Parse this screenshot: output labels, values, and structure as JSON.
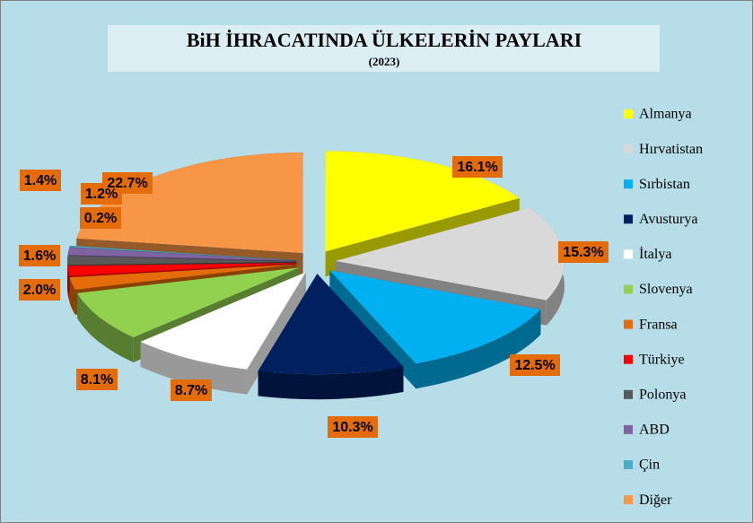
{
  "chart_data": {
    "type": "pie",
    "title": "BiH İHRACATINDA ÜLKELERİN PAYLARI",
    "subtitle": "(2023)",
    "categories": [
      "Almanya",
      "Hırvatistan",
      "Sırbistan",
      "Avusturya",
      "İtalya",
      "Slovenya",
      "Fransa",
      "Türkiye",
      "Polonya",
      "ABD",
      "Çin",
      "Diğer"
    ],
    "values": [
      16.1,
      15.3,
      12.5,
      10.3,
      8.7,
      8.1,
      2.0,
      1.6,
      1.4,
      1.2,
      0.2,
      22.7
    ],
    "value_labels": [
      "16.1%",
      "15.3%",
      "12.5%",
      "10.3%",
      "8.7%",
      "8.1%",
      "2.0%",
      "1.6%",
      "1.4%",
      "1.2%",
      "0.2%",
      "22.7%"
    ],
    "colors": [
      "#ffff00",
      "#d9d9d9",
      "#00b0f0",
      "#002060",
      "#ffffff",
      "#92d050",
      "#e46c0a",
      "#ff0000",
      "#595959",
      "#8064a2",
      "#4bacc6",
      "#f79646"
    ],
    "legend": "right"
  }
}
